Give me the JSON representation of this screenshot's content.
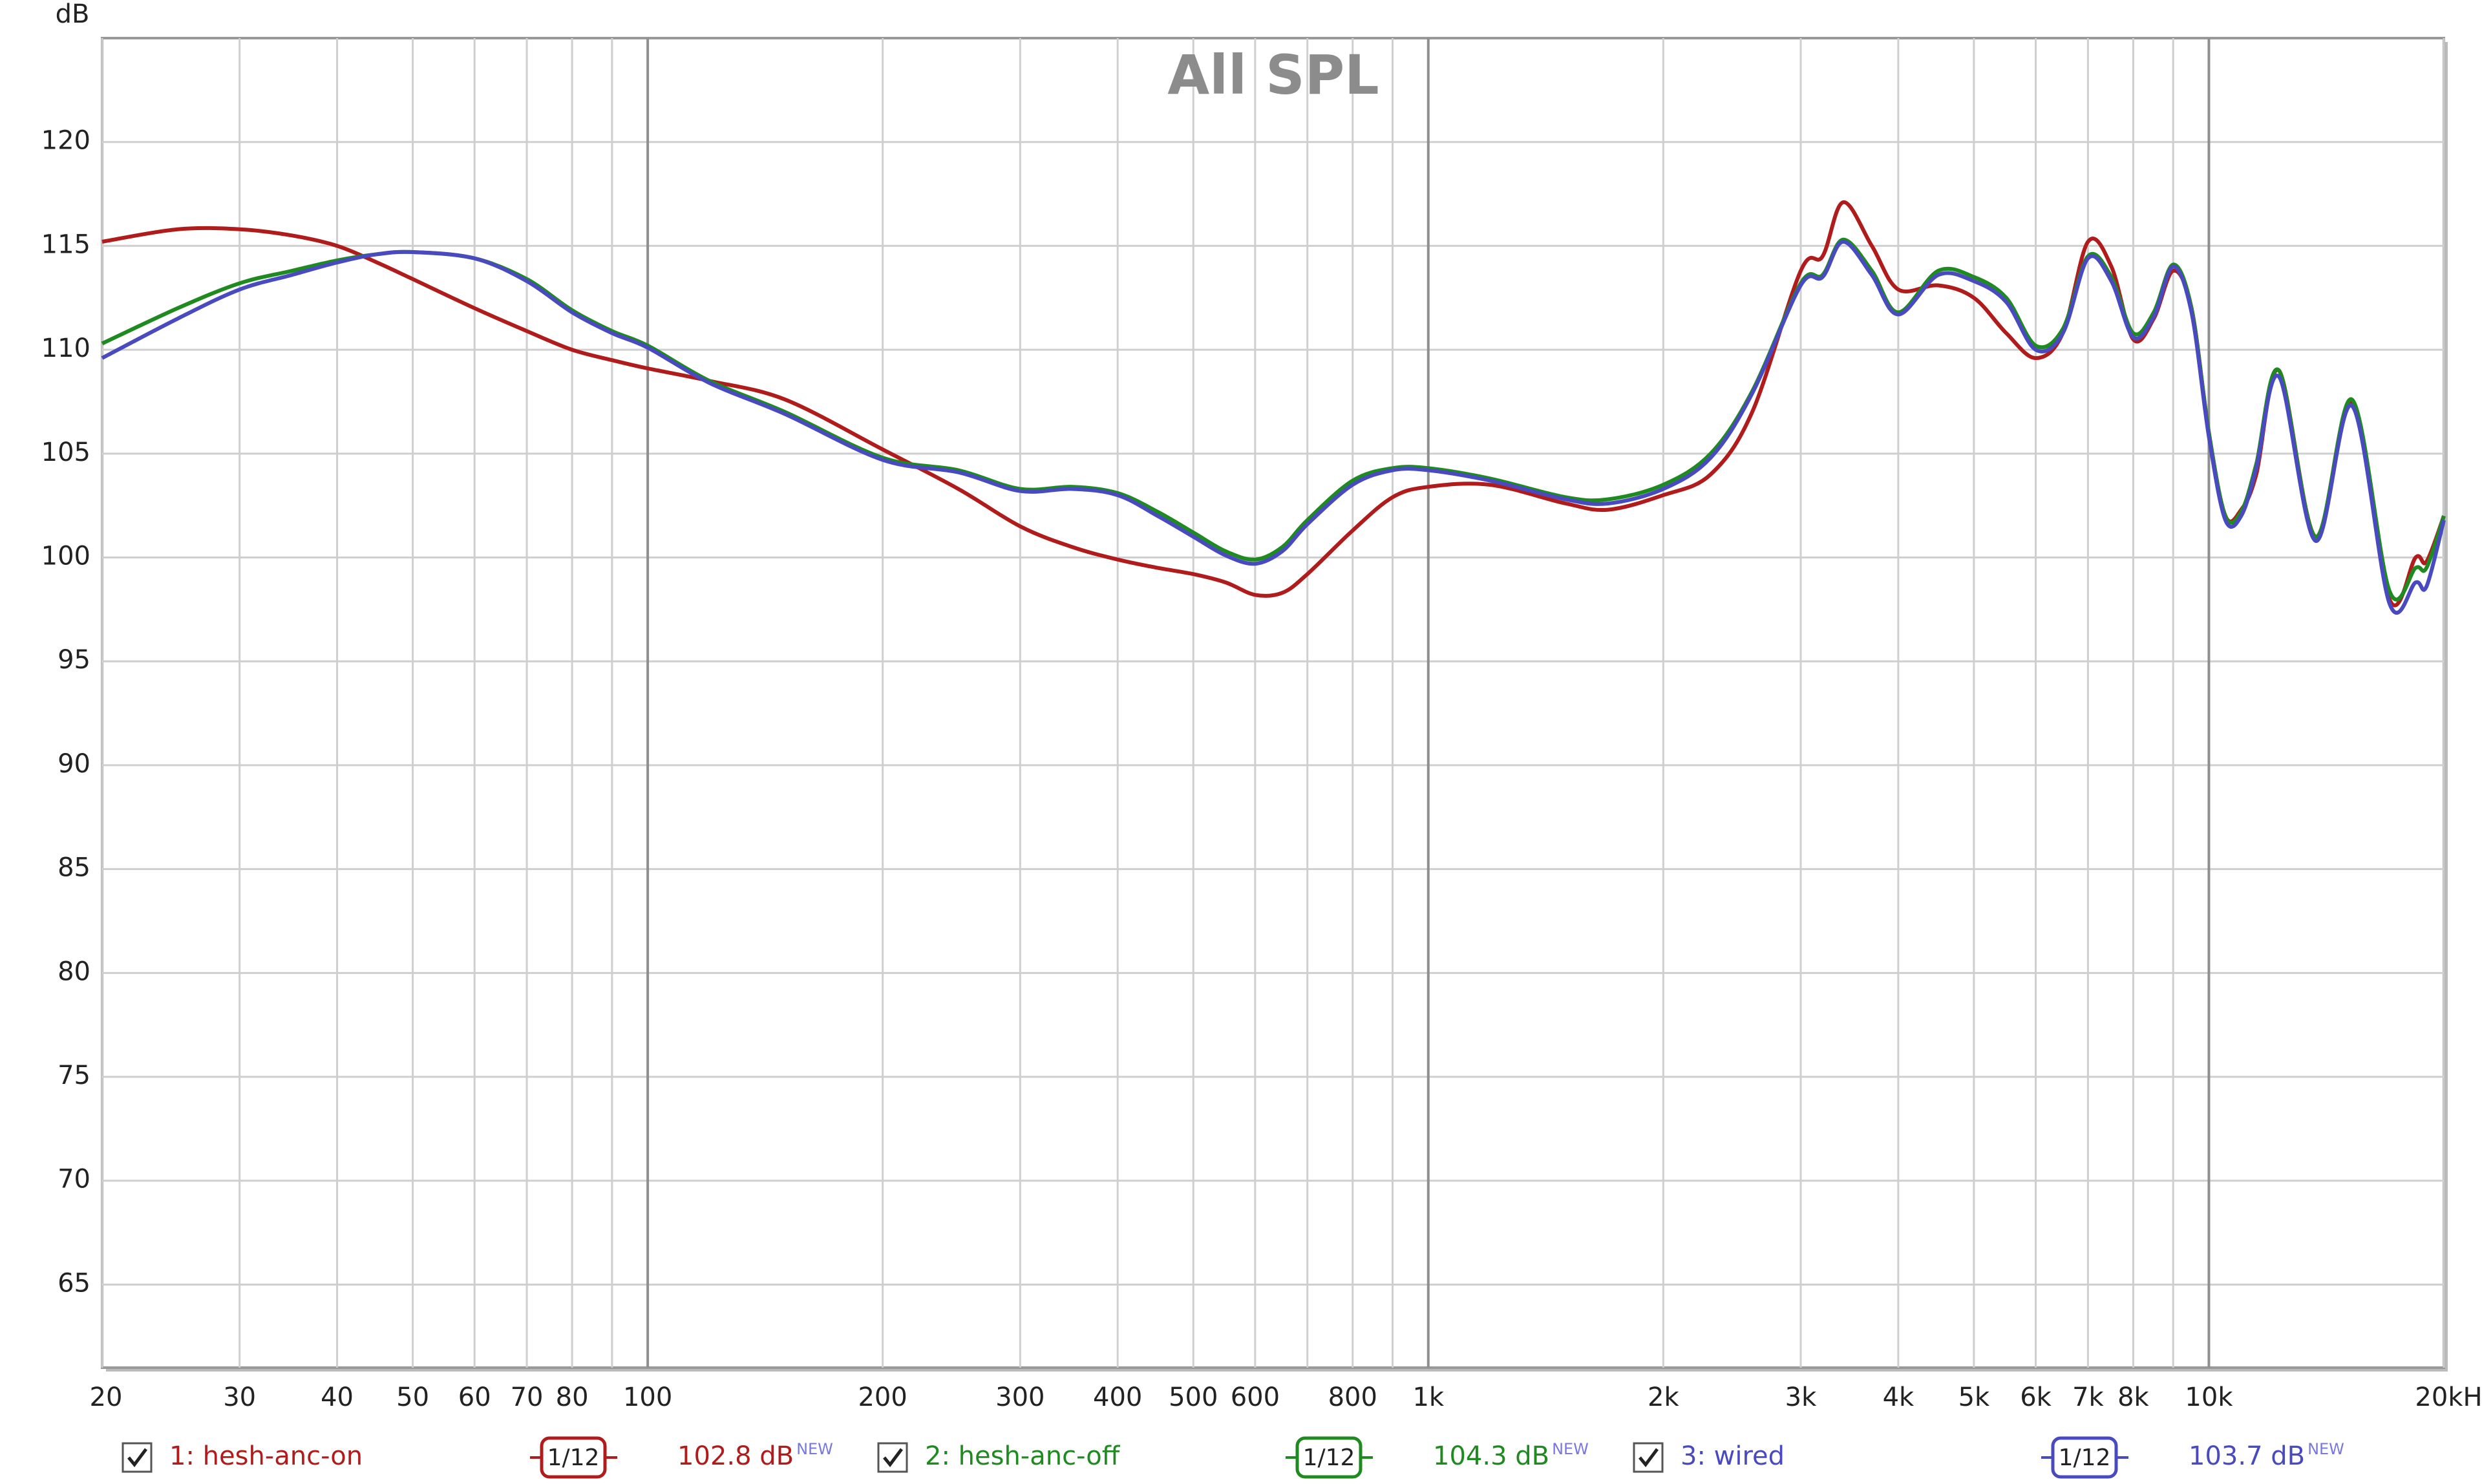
{
  "chart_data": {
    "type": "line",
    "title": "All SPL",
    "y_label": "dB",
    "x": [
      20,
      25,
      30,
      35,
      40,
      45,
      50,
      60,
      70,
      80,
      90,
      100,
      120,
      150,
      200,
      250,
      300,
      350,
      400,
      450,
      500,
      550,
      600,
      650,
      700,
      800,
      900,
      1000,
      1200,
      1500,
      1700,
      2000,
      2300,
      2600,
      3000,
      3200,
      3400,
      3700,
      4000,
      4500,
      5000,
      5500,
      6000,
      6500,
      7000,
      7500,
      8000,
      8500,
      9000,
      9500,
      10000,
      10500,
      11000,
      11500,
      12300,
      13700,
      15250,
      17030,
      18400,
      19000,
      20000
    ],
    "series": [
      {
        "name": "1: hesh-anc-on",
        "color": "#b01c1c",
        "smoothing": "1/12",
        "level": "102.8 dB",
        "badge": "NEW",
        "values": [
          115.2,
          115.8,
          115.8,
          115.5,
          115.0,
          114.2,
          113.4,
          112.0,
          110.9,
          110.0,
          109.5,
          109.1,
          108.5,
          107.6,
          105.2,
          103.3,
          101.5,
          100.5,
          99.9,
          99.5,
          99.2,
          98.8,
          98.2,
          98.3,
          99.2,
          101.3,
          102.9,
          103.4,
          103.5,
          102.6,
          102.3,
          103.0,
          104.0,
          107.0,
          113.8,
          114.5,
          117.1,
          115.0,
          112.9,
          113.1,
          112.5,
          110.8,
          109.6,
          110.8,
          115.2,
          114.0,
          110.5,
          111.5,
          113.8,
          112.0,
          106.0,
          102.0,
          102.3,
          104.0,
          109.0,
          101.0,
          107.5,
          98.0,
          100.0,
          99.8,
          102.0
        ]
      },
      {
        "name": "2: hesh-anc-off",
        "color": "#1f8a1f",
        "smoothing": "1/12",
        "level": "104.3 dB",
        "badge": "NEW",
        "values": [
          110.3,
          112.0,
          113.2,
          113.8,
          114.3,
          114.6,
          114.7,
          114.4,
          113.4,
          111.9,
          110.9,
          110.2,
          108.5,
          107.0,
          104.8,
          104.2,
          103.3,
          103.4,
          103.1,
          102.2,
          101.2,
          100.3,
          99.9,
          100.5,
          101.8,
          103.7,
          104.3,
          104.3,
          103.8,
          102.9,
          102.8,
          103.5,
          105.0,
          108.0,
          113.2,
          113.6,
          115.3,
          113.8,
          111.8,
          113.8,
          113.5,
          112.5,
          110.2,
          111.0,
          114.5,
          113.5,
          110.8,
          111.8,
          114.1,
          112.0,
          106.0,
          102.0,
          102.2,
          104.5,
          109.0,
          101.0,
          107.6,
          98.4,
          99.5,
          99.5,
          102.0
        ]
      },
      {
        "name": "3: wired",
        "color": "#4a4ac0",
        "smoothing": "1/12",
        "level": "103.7 dB",
        "badge": "NEW",
        "values": [
          109.6,
          111.5,
          112.9,
          113.6,
          114.2,
          114.6,
          114.7,
          114.4,
          113.3,
          111.8,
          110.8,
          110.1,
          108.4,
          106.9,
          104.7,
          104.1,
          103.2,
          103.3,
          103.0,
          102.0,
          101.0,
          100.1,
          99.7,
          100.3,
          101.6,
          103.5,
          104.2,
          104.2,
          103.7,
          102.8,
          102.6,
          103.3,
          104.8,
          107.9,
          113.1,
          113.5,
          115.2,
          113.6,
          111.7,
          113.6,
          113.3,
          112.3,
          110.0,
          110.8,
          114.4,
          113.3,
          110.6,
          111.6,
          114.0,
          111.8,
          105.8,
          101.8,
          102.0,
          104.3,
          108.7,
          100.8,
          107.3,
          97.8,
          98.8,
          98.6,
          101.8
        ]
      }
    ],
    "xlim": [
      20,
      20000
    ],
    "log_x": true,
    "xticks": [
      20,
      30,
      40,
      50,
      60,
      70,
      80,
      100,
      200,
      300,
      400,
      500,
      600,
      800,
      {
        "value": 1000,
        "label": "1k"
      },
      {
        "value": 2000,
        "label": "2k"
      },
      {
        "value": 3000,
        "label": "3k"
      },
      {
        "value": 4000,
        "label": "4k"
      },
      {
        "value": 5000,
        "label": "5k"
      },
      {
        "value": 6000,
        "label": "6k"
      },
      {
        "value": 7000,
        "label": "7k"
      },
      {
        "value": 8000,
        "label": "8k"
      },
      {
        "value": 10000,
        "label": "10k"
      },
      {
        "value": 20000,
        "label": "20kHz"
      }
    ],
    "x_minor_ticks": [
      90,
      700,
      900,
      9000
    ],
    "ylim": [
      61,
      125
    ],
    "yticks": [
      65,
      70,
      75,
      80,
      85,
      90,
      95,
      100,
      105,
      110,
      115,
      120
    ],
    "grid": true
  }
}
